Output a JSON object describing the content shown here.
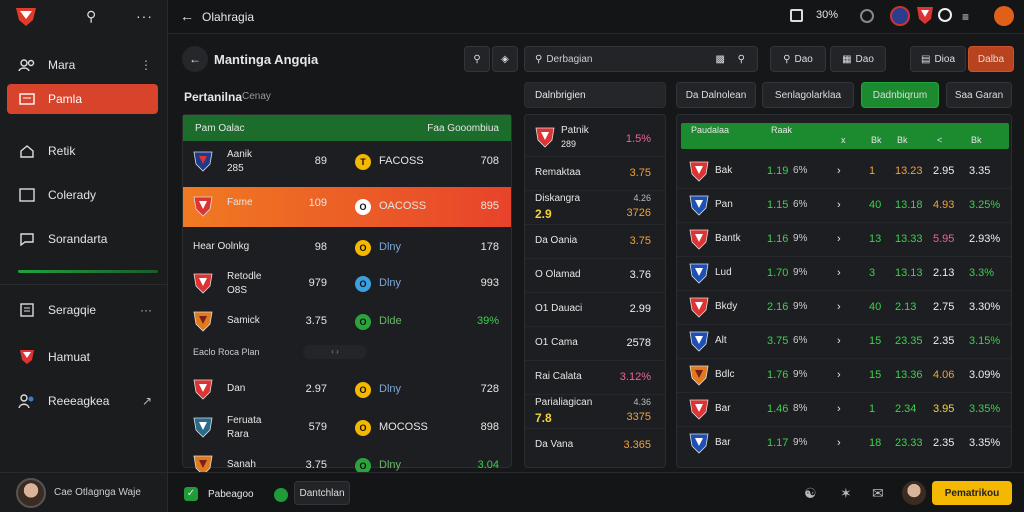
{
  "colors": {
    "accent": "#d8432b",
    "green": "#1f8f32",
    "yellow": "#f5b800"
  },
  "topbar": {
    "title": "Olahragia",
    "zoom": "30%"
  },
  "sidebar": {
    "items": [
      {
        "label": "Mara",
        "icon": "user-group-icon"
      },
      {
        "label": "Pamla",
        "icon": "id-card-icon"
      },
      {
        "label": "Retik",
        "icon": "home-icon"
      },
      {
        "label": "Colerady",
        "icon": "screen-icon"
      },
      {
        "label": "Sorandarta",
        "icon": "chat-icon"
      },
      {
        "label": "Seragqie",
        "icon": "document-icon"
      },
      {
        "label": "Hamuat",
        "icon": "shield-icon"
      },
      {
        "label": "Reeeagkea",
        "icon": "people-icon"
      }
    ],
    "user": "Cae Otlagnga Waje"
  },
  "left": {
    "title": "Mantinga Angqia",
    "subtitle": "Pertanilna",
    "subtitle2": "Cenay",
    "green_header": [
      "Pam Oalac",
      "Faa Gooombiua"
    ],
    "rows": [
      {
        "name": "Aanik",
        "sub": "285",
        "n": "89",
        "coin": "T",
        "ctext": "FACOSS",
        "val": "708",
        "crest": "navy"
      },
      {
        "name": "Fame",
        "sub": "",
        "n": "109",
        "coin": "O",
        "ctext": "OACOSS",
        "val": "895",
        "crest": "red",
        "highlight": true
      },
      {
        "name": "Hear Oolnkg",
        "sub": "",
        "n": "98",
        "coin": "O",
        "ctext": "Dlny",
        "val": "178",
        "crest": "none"
      },
      {
        "name": "Retodle",
        "sub": "O8S",
        "n": "979",
        "coin": "O",
        "ctext": "Dlny",
        "val": "993",
        "crest": "red"
      },
      {
        "name": "Samick",
        "sub": "",
        "n": "3.75",
        "coin": "O",
        "ctext": "Dlde",
        "val": "39%",
        "crest": "orange",
        "green": true
      },
      {
        "name": "Eaclo Roca Plan",
        "sub": "",
        "n": "",
        "coin": "",
        "ctext": "",
        "val": "",
        "crest": "none",
        "section": true
      },
      {
        "name": "Dan",
        "sub": "",
        "n": "2.97",
        "coin": "O",
        "ctext": "Dlny",
        "val": "728",
        "crest": "red"
      },
      {
        "name": "Feruata",
        "sub": "Rara",
        "n": "579",
        "coin": "O",
        "ctext": "MOCOSS",
        "val": "898",
        "crest": "badge"
      },
      {
        "name": "Sanah",
        "sub": "",
        "n": "3.75",
        "coin": "O",
        "ctext": "Dlny",
        "val": "3.04",
        "crest": "orange",
        "green": true
      }
    ]
  },
  "search": {
    "placeholder": "Derbagian"
  },
  "mid": {
    "header": "Dalnbrigien",
    "rows": [
      {
        "name": "Patnik",
        "sub": "289",
        "val": "1.5%",
        "color": "pink",
        "crest": "red"
      },
      {
        "name": "Remaktaa",
        "sub": "",
        "val": "3.75",
        "color": "org"
      },
      {
        "name": "Diskangra",
        "sub": "2.9",
        "val": "3726",
        "color": "org",
        "extra": "4.26"
      },
      {
        "name": "Da Oania",
        "sub": "",
        "val": "3.75",
        "color": "org"
      },
      {
        "name": "O Olamad",
        "sub": "",
        "val": "3.76",
        "color": "wht"
      },
      {
        "name": "O1 Dauaci",
        "sub": "",
        "val": "2.99",
        "color": "wht"
      },
      {
        "name": "O1 Cama",
        "sub": "",
        "val": "2578",
        "color": "wht"
      },
      {
        "name": "Rai Calata",
        "sub": "",
        "val": "3.12%",
        "color": "pink"
      },
      {
        "name": "Parialiagican",
        "sub": "7.8",
        "val": "3375",
        "color": "org",
        "extra": "4.36"
      },
      {
        "name": "Da Vana",
        "sub": "",
        "val": "3.365",
        "color": "org"
      }
    ]
  },
  "tabs": [
    "Da Dalnolean",
    "Senlagolarklaa",
    "Dadnbiqrum",
    "Saa Garan"
  ],
  "right": {
    "headers": [
      "Paudalaa",
      "Raak",
      "x",
      "Bk",
      "Bk",
      "<",
      "Bk"
    ],
    "rows": [
      {
        "team": "Bak",
        "a": "1.19",
        "b": "6%",
        "c": "1",
        "d": "13.23",
        "e": "2.95",
        "f": "3.35",
        "crest": "red"
      },
      {
        "team": "Pan",
        "a": "1.15",
        "b": "6%",
        "c": "40",
        "d": "13.18",
        "e": "4.93",
        "f": "3.25%",
        "crest": "blue"
      },
      {
        "team": "Bantk",
        "a": "1.16",
        "b": "9%",
        "c": "13",
        "d": "13.33",
        "e": "5.95",
        "f": "2.93%",
        "crest": "red"
      },
      {
        "team": "Lud",
        "a": "1.70",
        "b": "9%",
        "c": "3",
        "d": "13.13",
        "e": "2.13",
        "f": "3.3%",
        "crest": "blue"
      },
      {
        "team": "Bkdy",
        "a": "2.16",
        "b": "9%",
        "c": "40",
        "d": "2.13",
        "e": "2.75",
        "f": "3.30%",
        "crest": "red"
      },
      {
        "team": "Alt",
        "a": "3.75",
        "b": "6%",
        "c": "15",
        "d": "23.35",
        "e": "2.35",
        "f": "3.15%",
        "crest": "blue"
      },
      {
        "team": "Bdlc",
        "a": "1.76",
        "b": "9%",
        "c": "15",
        "d": "13.36",
        "e": "4.06",
        "f": "3.09%",
        "crest": "orange"
      },
      {
        "team": "Bar",
        "a": "1.46",
        "b": "8%",
        "c": "1",
        "d": "2.34",
        "e": "3.95",
        "f": "3.35%",
        "crest": "red"
      },
      {
        "team": "Bar",
        "a": "1.17",
        "b": "9%",
        "c": "18",
        "d": "23.33",
        "e": "2.35",
        "f": "3.35%",
        "crest": "blue"
      }
    ]
  },
  "toolbar": {
    "btn1": "Dao",
    "btn2": "Dao",
    "btn3": "Dioa",
    "btn4": "Dalba"
  },
  "bottom": {
    "check": "Pabeagoo",
    "btn": "Dantchlan",
    "cta": "Pematrikou"
  }
}
